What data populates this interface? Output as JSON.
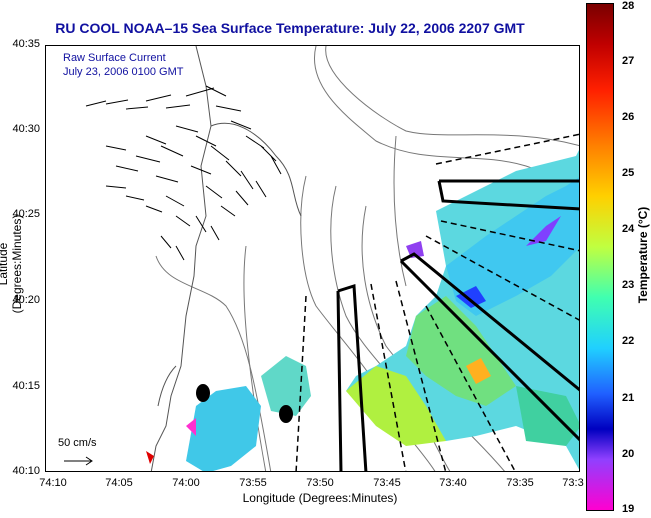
{
  "title": "RU COOL  NOAA–15  Sea Surface Temperature:  July 22, 2006 2207 GMT",
  "legend": {
    "line1": "Raw Surface Current",
    "line2": "July 23, 2006 0100 GMT"
  },
  "scale_label": "50 cm/s",
  "axes": {
    "xlabel": "Longitude (Degrees:Minutes)",
    "ylabel": "Latitude (Degrees:Minutes)",
    "xticks": [
      "74:10",
      "74:05",
      "74:00",
      "73:55",
      "73:50",
      "73:45",
      "73:40",
      "73:35",
      "73:3"
    ],
    "yticks": [
      "40:35",
      "40:30",
      "40:25",
      "40:20",
      "40:15",
      "40:10"
    ]
  },
  "colorbar": {
    "label": "Temperature (°C)",
    "ticks": [
      "28",
      "27",
      "26",
      "25",
      "24",
      "23",
      "22",
      "21",
      "20",
      "19"
    ]
  },
  "colors": {
    "title": "#1010a0",
    "land_outline": "#555555"
  }
}
